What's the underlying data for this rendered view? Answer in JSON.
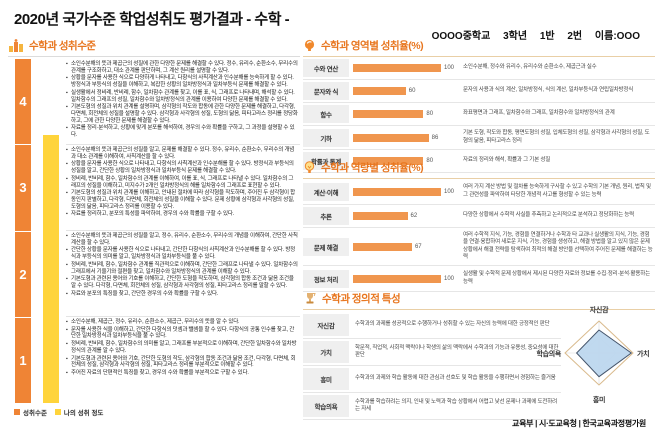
{
  "colors": {
    "accent_orange": "#E8761F",
    "chart_bar_orange": "#F0964E",
    "level_bar_orange": "#EF8435",
    "my_level_yellow": "#FFD43B",
    "radar_fill": "#BDD7EE",
    "radar_stroke": "#44546A",
    "radar_grid_tan": "#D9BA8C"
  },
  "header": {
    "title": "2020년 국가수준 학업성취도 평가결과 - 수학 -",
    "school": "OOOO중학교",
    "grade": "3학년",
    "class": "1반",
    "number": "2번",
    "name": "이름:OOO"
  },
  "achievement": {
    "title": "수학과 성취수준",
    "levels": [
      {
        "level": "4",
        "points": [
          "소인수분해의 뜻과 제곱근의 성질에 관한 다양한 문제를 해결할 수 있다. 정수, 유리수, 순환소수, 무리수의 관계를 구조화하고, 대소 관계를 판단하며, 그 계산 원리를 설명할 수 있다.",
          "상황을 문자를 사용한 식으로 다양하게 나타내고, 다항식의 사칙계산과 인수분해를 능숙하게 할 수 있다. 방정식과 부등식의 성질을 이해하고, 복잡한 상황의 일차방정식과 일차부등식 문제를 해결할 수 있다.",
          "실생활에서 정비례, 반비례, 함수, 일차함수 관계를 찾고, 이를 표, 식, 그래프로 나타내며, 해석할 수 있다. 일차함수의 그래프의 성질, 일차함수와 일차방정식의 관계를 이용하여 다양한 문제를 해결할 수 있다.",
          "기본도형의 성질과 위치 관계를 설명하며, 삼각형의 작도와 합동에 관한 다양한 문제를 해결하고, 다각형, 다면체, 회전체의 성질을 설명할 수 있다. 삼각형과 사각형의 성질, 도형의 닮음, 피타고라스 정리를 정당화하고, 그에 관한 다양한 문제를 해결할 수 있다.",
          "자료를 정리·분석하고, 상황에 맞게 분포를 해석하여, 경우의 수와 확률을 구하고, 그 과정을 설명할 수 있다."
        ]
      },
      {
        "level": "3",
        "points": [
          "소인수분해의 뜻과 제곱근의 성질을 알고, 문제를 해결할 수 있다. 정수, 유리수, 순환소수, 무리수의 개념과 대소 관계를 이해하여, 사칙계산을 할 수 있다.",
          "상황을 문자를 사용한 식으로 나타내고, 다항식의 사칙계산과 인수분해를 할 수 있다. 방정식과 부등식의 성질을 알고, 간단한 상황의 일차방정식과 일차부등식 문제를 해결할 수 있다.",
          "정비례, 반비례, 함수, 일차함수의 관계를 이해하여, 이를 표, 식, 그래프로 나타낼 수 있다. 일차함수의 그래프의 성질을 이해하고, 미지수가 2개인 일차방정식의 해를 일차함수의 그래프로 표현할 수 있다.",
          "기본도형의 성질과 위치 관계를 이해하고, 안내된 절차에 따라 삼각형을 작도하며, 주어진 두 삼각형이 합동인지 판별하고, 다각형, 다면체, 회전체의 성질을 이해할 수 있다. 문제 상황에 삼각형과 사각형의 성질, 도형의 닮음, 피타고라스 정리를 이용할 수 있다.",
          "자료를 정리하고, 분포의 특성을 파악하여, 경우의 수와 확률을 구할 수 있다."
        ]
      },
      {
        "level": "2",
        "points": [
          "소인수분해의 뜻과 제곱근의 성질을 알고, 정수, 유리수, 순환소수, 무리수의 개념을 이해하여, 간단한 사칙계산을 할 수 있다.",
          "간단한 상황을 문자를 사용한 식으로 나타내고, 간단한 다항식의 사칙계산과 인수분해를 할 수 있다. 방정식과 부등식의 의미를 알고, 일차방정식과 일차부등식을 풀 수 있다.",
          "정비례, 반비례, 함수, 일차함수 관계를 직관적으로 이해하며, 간단한 그래프로 나타낼 수 있다. 일차함수의 그래프에서 기울기와 절편을 찾고, 일차함수와 일차방정식의 관계를 이해할 수 있다.",
          "기본도형과 관련된 용어와 기호를 이해하고, 간단한 도형을 작도하며, 삼각형의 합동 조건과 닮음 조건을 알 수 있다. 다각형, 다면체, 회전체의 성질, 삼각형과 사각형의 성질, 피타고라스 정리를 말할 수 있다.",
          "자료와 분포의 특징을 찾고, 간단한 경우의 수와 확률을 구할 수 있다."
        ]
      },
      {
        "level": "1",
        "points": [
          "소인수분해, 제곱근, 정수, 유리수, 순환소수, 제곱근, 무리수의 뜻을 알 수 있다.",
          "문자를 사용한 식을 이해하고, 간단한 다항식의 덧셈과 뺄셈을 할 수 있다. 다항식의 공통 인수를 찾고, 간단한 일차방정식과 일차부등식을 풀 수 있다.",
          "정비례, 반비례, 함수, 일차함수의 의미를 알고, 그래프를 부분적으로 이해하며, 간단한 일차함수와 일차방정식의 관계를 알 수 있다.",
          "기본도형과 관련된 용어와 기호, 간단한 도형의 작도, 삼각형의 합동 조건과 닮음 조건, 다각형, 다면체, 회전체의 성질, 삼각형과 사각형의 성질, 피타고라스 정리를 부분적으로 이해할 수 있다.",
          "주어진 자료의 단편적인 특징을 찾고, 경우의 수와 확률을 부분적으로 구할 수 있다."
        ]
      }
    ],
    "legend": [
      {
        "label": "성취수준"
      },
      {
        "label": "나의 성취 정도"
      }
    ]
  },
  "domain_section": {
    "title": "수학과 영역별 성취율(%)",
    "rows": [
      {
        "label": "수와 연산",
        "value": 100,
        "desc": "소인수분해, 정수와 유리수, 유리수와 순환소수, 제곱근과 실수"
      },
      {
        "label": "문자와 식",
        "value": 60,
        "desc": "문자의 사용과 식의 계산, 일차방정식, 식의 계산, 일차부등식과 연립일차방정식"
      },
      {
        "label": "함수",
        "value": 80,
        "desc": "좌표평면과 그래프, 일차함수와 그래프, 일차함수와 일차방정식의 관계"
      },
      {
        "label": "기하",
        "value": 86,
        "desc": "기본 도형, 작도와 합동, 평면도형의 성질, 입체도형의 성질, 삼각형과 사각형의 성질, 도형의 닮음, 피타고라스 정리"
      },
      {
        "label": "확률과 통계",
        "value": 80,
        "desc": "자료의 정리와 해석, 확률과 그 기본 성질"
      }
    ]
  },
  "competency_section": {
    "title": "수학과 역량별 성취율(%)",
    "rows": [
      {
        "label": "계산·이해",
        "value": 100,
        "desc": "여러 가지 계산 방법 및 절차를 능숙하게 구사할 수 있고 수학의 기본 개념, 원리, 법칙 및 그 관련성을 파악하여 타당한 개념적 사고를 형성할 수 있는 능력"
      },
      {
        "label": "추론",
        "value": 62,
        "desc": "다양한 상황에서 수학적 사실을 추측하고 논리적으로 분석하고 정당화하는 능력"
      },
      {
        "label": "문제 해결",
        "value": 67,
        "desc": "여러 수학적 지식, 기능, 경험을 연결하거나 수학과 타 교과나 실생활의 지식, 기능, 경험을 연결·융합하여 새로운 지식, 기능, 경험을 생성하고, 해결 방법을 알고 있지 않은 문제 상황에서 해결 전략을 탐색하여 최적의 해결 방안을 선택하여 주어진 문제를 해결하는 능력"
      },
      {
        "label": "정보 처리",
        "value": 100,
        "desc": "실생활 및 수학적 문제 상황에서 제시된 다양한 자료와 정보를 수집·정리·분석·활용하는 능력"
      }
    ]
  },
  "affective_section": {
    "title": "수학과 정의적 특성",
    "rows": [
      {
        "label": "자신감",
        "desc": "수학과의 과제를 성공적으로 수행하거나 성취할 수 있는 자신의 능력에 대한 긍정적인 판단"
      },
      {
        "label": "가치",
        "desc": "학문적, 직업적, 사회적 맥락이나 학생의 삶의 맥락에서 수학과의 기능과 유용성, 중요성에 대한 판단"
      },
      {
        "label": "흥미",
        "desc": "수학과의 과제와 학습 활동에 대한 관심과 선호도 및 학습 활동을 수행하면서 경험하는 즐거움"
      },
      {
        "label": "학습의욕",
        "desc": "수학과를 학습하려는 의지, 인내 및 노력과 학습 상황에서 어렵고 낯선 문제나 과제에 도전하려는 자세"
      }
    ],
    "radar": {
      "axes": [
        "자신감",
        "가치",
        "흥미",
        "학습의욕"
      ],
      "values": [
        0.72,
        0.95,
        0.74,
        0.66
      ]
    }
  },
  "footer": "교육부 | 시·도교육청 | 한국교육과정평가원",
  "chart_data": [
    {
      "type": "bar",
      "orientation": "horizontal",
      "title": "수학과 영역별 성취율(%)",
      "categories": [
        "수와 연산",
        "문자와 식",
        "함수",
        "기하",
        "확률과 통계"
      ],
      "values": [
        100,
        60,
        80,
        86,
        80
      ],
      "xlim": [
        0,
        100
      ]
    },
    {
      "type": "bar",
      "orientation": "horizontal",
      "title": "수학과 역량별 성취율(%)",
      "categories": [
        "계산·이해",
        "추론",
        "문제 해결",
        "정보 처리"
      ],
      "values": [
        100,
        62,
        67,
        100
      ],
      "xlim": [
        0,
        100
      ]
    },
    {
      "type": "radar",
      "title": "수학과 정의적 특성",
      "categories": [
        "자신감",
        "가치",
        "흥미",
        "학습의욕"
      ],
      "values_fraction": [
        0.72,
        0.95,
        0.74,
        0.66
      ]
    }
  ]
}
